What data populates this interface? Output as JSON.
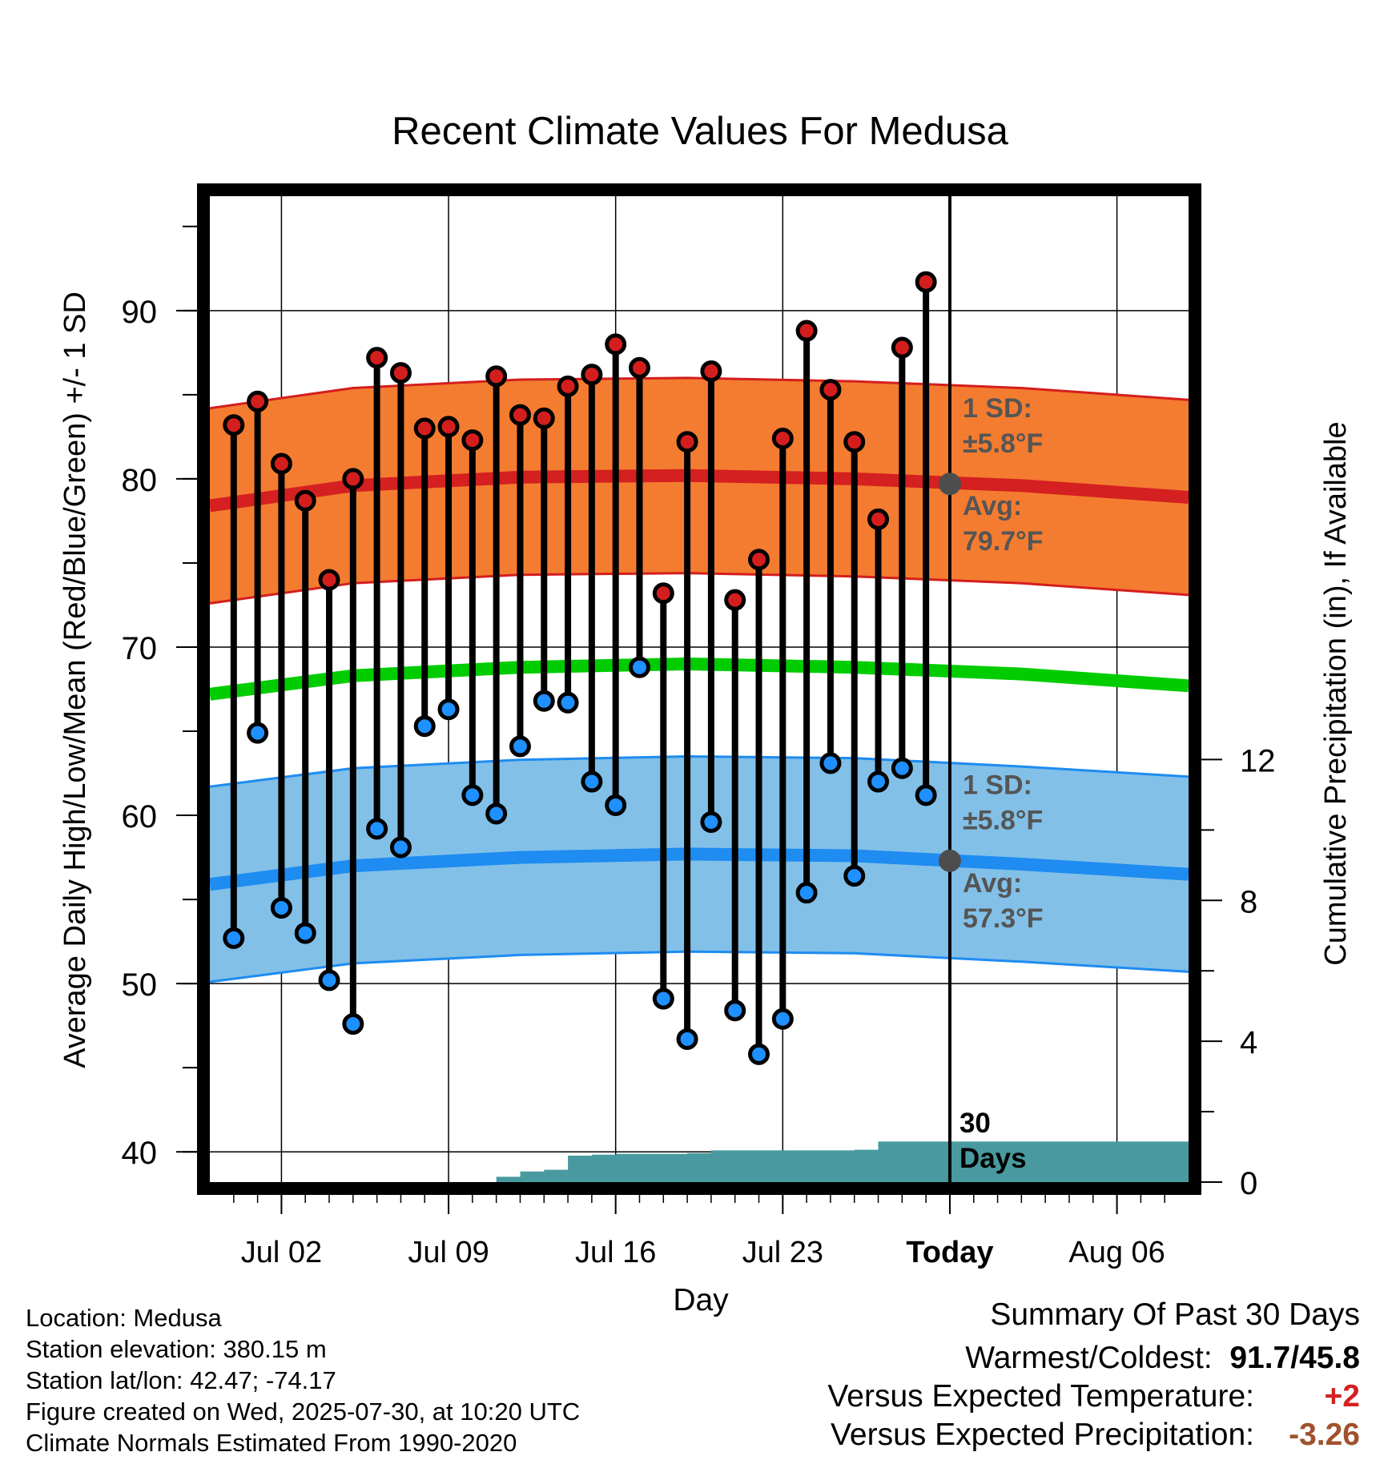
{
  "chart_data": {
    "type": "line",
    "title": "Recent Climate Values For Medusa",
    "xlabel": "Day",
    "ylabel": "Average Daily High/Low/Mean (Red/Blue/Green) +/- 1 SD",
    "y2label": "Cumulative Precipitation (in), If Available",
    "ylim": [
      38.2,
      96.8
    ],
    "y2lim": [
      0,
      28
    ],
    "y_ticks": [
      40,
      50,
      60,
      70,
      80,
      90
    ],
    "y2_ticks": [
      0,
      4,
      8,
      12
    ],
    "x_domain": [
      "2025-06-29",
      "2025-08-09"
    ],
    "x_ticks": [
      {
        "date": "2025-07-02",
        "label": "Jul 02"
      },
      {
        "date": "2025-07-09",
        "label": "Jul 09"
      },
      {
        "date": "2025-07-16",
        "label": "Jul 16"
      },
      {
        "date": "2025-07-23",
        "label": "Jul 23"
      },
      {
        "date": "2025-07-30",
        "label": "Today"
      },
      {
        "date": "2025-08-06",
        "label": "Aug 06"
      }
    ],
    "grid": true,
    "today": "2025-07-30",
    "window_label": "30 Days",
    "normals": {
      "dates": [
        "2025-06-29",
        "2025-07-05",
        "2025-07-12",
        "2025-07-19",
        "2025-07-26",
        "2025-08-02",
        "2025-08-09"
      ],
      "high_mean": [
        78.4,
        79.6,
        80.1,
        80.2,
        80.0,
        79.6,
        78.9
      ],
      "high_sd": 5.8,
      "low_mean": [
        55.9,
        57.0,
        57.5,
        57.7,
        57.6,
        57.1,
        56.5
      ],
      "low_sd": 5.8,
      "daily_mean": [
        67.2,
        68.3,
        68.8,
        69.0,
        68.8,
        68.4,
        67.7
      ]
    },
    "annotations": {
      "high_sd_label": "1 SD:",
      "high_sd_value": "±5.8°F",
      "high_avg_label": "Avg:",
      "high_avg_value": "79.7°F",
      "low_sd_label": "1 SD:",
      "low_sd_value": "±5.8°F",
      "low_avg_label": "Avg:",
      "low_avg_value": "57.3°F",
      "today_high_avg": 79.7,
      "today_low_avg": 57.3
    },
    "daily": {
      "dates": [
        "2025-06-30",
        "2025-07-01",
        "2025-07-02",
        "2025-07-03",
        "2025-07-04",
        "2025-07-05",
        "2025-07-06",
        "2025-07-07",
        "2025-07-08",
        "2025-07-09",
        "2025-07-10",
        "2025-07-11",
        "2025-07-12",
        "2025-07-13",
        "2025-07-14",
        "2025-07-15",
        "2025-07-16",
        "2025-07-17",
        "2025-07-18",
        "2025-07-19",
        "2025-07-20",
        "2025-07-21",
        "2025-07-22",
        "2025-07-23",
        "2025-07-24",
        "2025-07-25",
        "2025-07-26",
        "2025-07-27",
        "2025-07-28",
        "2025-07-29"
      ],
      "highs": [
        83.2,
        84.6,
        80.9,
        78.7,
        74.0,
        80.0,
        87.2,
        86.3,
        83.0,
        83.1,
        82.3,
        86.1,
        83.8,
        83.6,
        85.5,
        86.2,
        88.0,
        86.6,
        73.2,
        82.2,
        86.4,
        72.8,
        75.2,
        82.4,
        88.8,
        85.3,
        82.2,
        77.6,
        87.8,
        91.7
      ],
      "lows": [
        52.7,
        64.9,
        54.5,
        53.0,
        50.2,
        47.6,
        59.2,
        58.1,
        65.3,
        66.3,
        61.2,
        60.1,
        64.1,
        66.8,
        66.7,
        62.0,
        60.6,
        68.8,
        49.1,
        46.7,
        59.6,
        48.4,
        45.8,
        47.9,
        55.4,
        63.1,
        56.4,
        62.0,
        62.8,
        61.2
      ]
    },
    "precip": {
      "dates": [
        "2025-06-29",
        "2025-07-09",
        "2025-07-11",
        "2025-07-12",
        "2025-07-13",
        "2025-07-14",
        "2025-07-15",
        "2025-07-16",
        "2025-07-19",
        "2025-07-20",
        "2025-07-26",
        "2025-07-27",
        "2025-08-09"
      ],
      "cumulative": [
        0,
        0,
        0.15,
        0.3,
        0.35,
        0.75,
        0.78,
        0.8,
        0.82,
        0.9,
        0.92,
        1.15,
        1.15
      ]
    },
    "colors": {
      "high_band": "#f47c30",
      "high_edge": "#d41e1e",
      "high_mean": "#d42020",
      "low_band": "#82c0e8",
      "low_edge": "#1e8cf0",
      "low_mean": "#1e8cf0",
      "daily_mean": "#00cc00",
      "precip": "#489aa0",
      "high_marker": "#d41e1e",
      "low_marker": "#1e90ff",
      "today_marker": "#4d4d4d",
      "annotation_text": "#555555"
    }
  },
  "footer": {
    "location": "Location: Medusa",
    "elevation": "Station elevation: 380.15 m",
    "latlon": "Station lat/lon: 42.47; -74.17",
    "created": "Figure created on Wed, 2025-07-30, at 10:20 UTC",
    "normals": "Climate Normals Estimated From 1990-2020"
  },
  "summary": {
    "title": "Summary Of Past 30 Days",
    "warm_cold_label": "Warmest/Coldest:",
    "warm_cold_value": "91.7/45.8",
    "temp_label": "Versus Expected Temperature:",
    "temp_value": "+2",
    "temp_color": "#d42020",
    "precip_label": "Versus Expected Precipitation:",
    "precip_value": "-3.26",
    "precip_color": "#a0522d"
  }
}
